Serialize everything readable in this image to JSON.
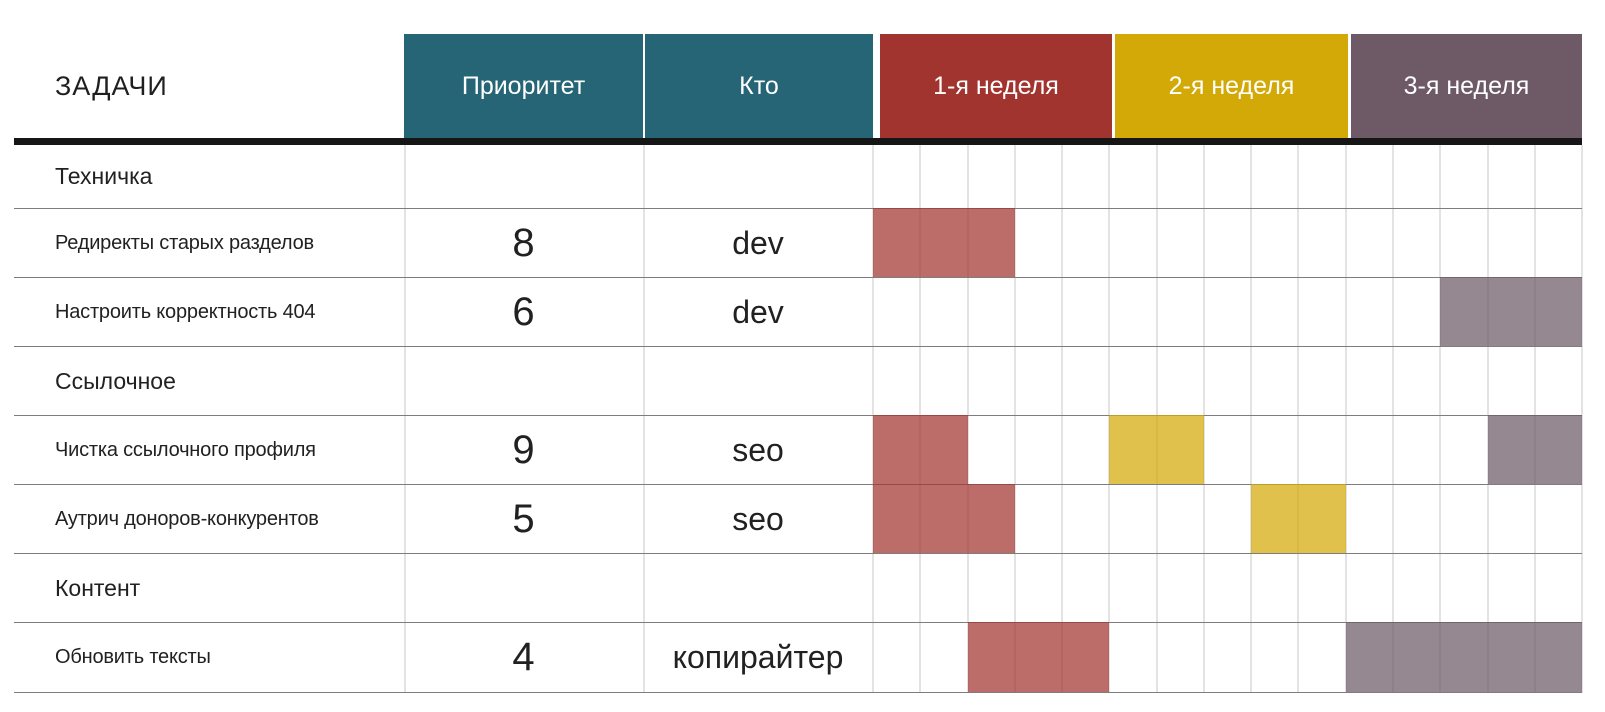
{
  "title": "ЗАДАЧИ",
  "columns": {
    "priority": "Приоритет",
    "who": "Кто"
  },
  "weeks": [
    {
      "label": "1-я неделя",
      "color": "#a23430"
    },
    {
      "label": "2-я неделя",
      "color": "#d2a907"
    },
    {
      "label": "3-я неделя",
      "color": "#6e5a66"
    }
  ],
  "colors": {
    "header_teal": "#266575",
    "week1_red": "#a23430",
    "week2_yellow": "#d2a907",
    "week3_purple": "#6e5a66",
    "bar_alpha": 0.72,
    "row_separator": "#7d7d7d",
    "day_gridline": "#e3e3e3",
    "header_underline": "#161616",
    "text": "#212121"
  },
  "chart_data": {
    "type": "gantt",
    "title": "ЗАДАЧИ",
    "weeks": [
      "1-я неделя",
      "2-я неделя",
      "3-я неделя"
    ],
    "days_per_week": 5,
    "total_days": 15,
    "rows": [
      {
        "type": "section",
        "label": "Техничка"
      },
      {
        "type": "task",
        "label": "Редиректы старых разделов",
        "priority": "8",
        "who": "dev",
        "bars": [
          {
            "week": 1,
            "from_day": 1,
            "to_day": 3
          }
        ]
      },
      {
        "type": "task",
        "label": "Настроить корректность 404",
        "priority": "6",
        "who": "dev",
        "bars": [
          {
            "week": 3,
            "from_day": 13,
            "to_day": 15
          }
        ]
      },
      {
        "type": "section",
        "label": "Ссылочное"
      },
      {
        "type": "task",
        "label": "Чистка ссылочного профиля",
        "priority": "9",
        "who": "seo",
        "bars": [
          {
            "week": 1,
            "from_day": 1,
            "to_day": 2
          },
          {
            "week": 2,
            "from_day": 6,
            "to_day": 7
          },
          {
            "week": 3,
            "from_day": 14,
            "to_day": 15
          }
        ]
      },
      {
        "type": "task",
        "label": "Аутрич доноров-конкурентов",
        "priority": "5",
        "who": "seo",
        "bars": [
          {
            "week": 1,
            "from_day": 1,
            "to_day": 3
          },
          {
            "week": 2,
            "from_day": 9,
            "to_day": 10
          }
        ]
      },
      {
        "type": "section",
        "label": "Контент"
      },
      {
        "type": "task",
        "label": "Обновить тексты",
        "priority": "4",
        "who": "копирайтер",
        "bars": [
          {
            "week": 1,
            "from_day": 3,
            "to_day": 5
          },
          {
            "week": 3,
            "from_day": 11,
            "to_day": 15
          }
        ]
      }
    ]
  }
}
